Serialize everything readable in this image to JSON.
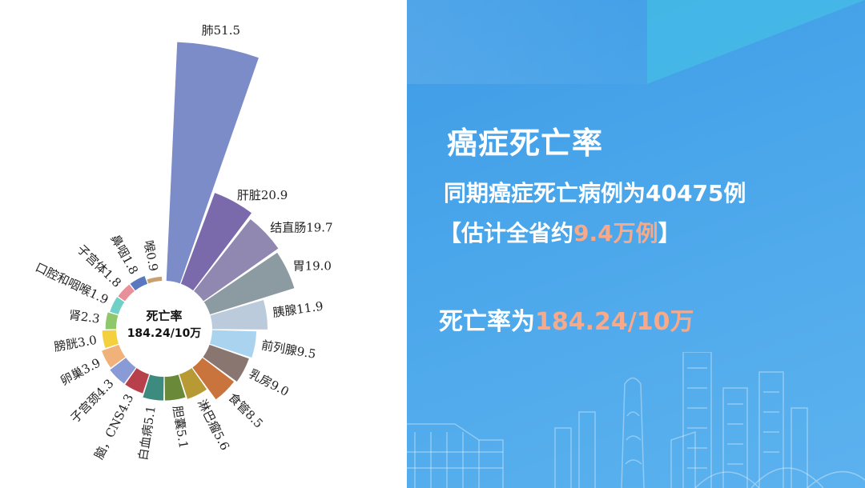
{
  "chart_data": {
    "type": "polar-bar",
    "center_label": [
      "死亡率",
      "184.24/10万"
    ],
    "categories": [
      {
        "name": "肺",
        "value": 51.5,
        "label": "肺51.5",
        "color": "#7b8cc8"
      },
      {
        "name": "肝脏",
        "value": 20.9,
        "label": "肝脏20.9",
        "color": "#7a6aab"
      },
      {
        "name": "结直肠",
        "value": 19.7,
        "label": "结直肠19.7",
        "color": "#9188b2"
      },
      {
        "name": "胃",
        "value": 19.0,
        "label": "胃19.0",
        "color": "#8c9aa2"
      },
      {
        "name": "胰腺",
        "value": 11.9,
        "label": "胰腺11.9",
        "color": "#bccbdb"
      },
      {
        "name": "前列腺",
        "value": 9.5,
        "label": "前列腺9.5",
        "color": "#a9d3ee"
      },
      {
        "name": "乳房",
        "value": 9.0,
        "label": "乳房9.0",
        "color": "#8a7670"
      },
      {
        "name": "食管",
        "value": 8.5,
        "label": "食管8.5",
        "color": "#c8743c"
      },
      {
        "name": "淋巴瘤",
        "value": 5.6,
        "label": "淋巴瘤5.6",
        "color": "#b89a34"
      },
      {
        "name": "胆囊",
        "value": 5.1,
        "label": "胆囊5.1",
        "color": "#6a8a3a"
      },
      {
        "name": "白血病",
        "value": 5.1,
        "label": "白血病5.1",
        "color": "#3d8a7e"
      },
      {
        "name": "脑，CNS",
        "value": 4.3,
        "label": "脑，CNS4.3",
        "color": "#b8404a"
      },
      {
        "name": "子宫颈",
        "value": 4.3,
        "label": "子宫颈4.3",
        "color": "#8a9ad6"
      },
      {
        "name": "卵巢",
        "value": 3.9,
        "label": "卵巢3.9",
        "color": "#f0b27a"
      },
      {
        "name": "膀胱",
        "value": 3.0,
        "label": "膀胱3.0",
        "color": "#f4d03f"
      },
      {
        "name": "肾",
        "value": 2.3,
        "label": "肾2.3",
        "color": "#8fc86a"
      },
      {
        "name": "口腔和咽喉",
        "value": 1.9,
        "label": "口腔和咽喉1.9",
        "color": "#6fd0c8"
      },
      {
        "name": "子宫体",
        "value": 1.8,
        "label": "子宫体1.8",
        "color": "#e8909a"
      },
      {
        "name": "鼻咽",
        "value": 1.8,
        "label": "鼻咽1.8",
        "color": "#5a78c0"
      },
      {
        "name": "喉",
        "value": 0.9,
        "label": "喉0.9",
        "color": "#c8a070"
      }
    ]
  },
  "info": {
    "title": "癌症死亡率",
    "line1": "同期癌症死亡病例为40475例",
    "line2_prefix": "【估计全省约",
    "line2_highlight": "9.4万例",
    "line2_suffix": "】",
    "line3_prefix": "死亡率为",
    "line3_highlight": "184.24/10万",
    "highlight_color": "#f7a98a"
  }
}
